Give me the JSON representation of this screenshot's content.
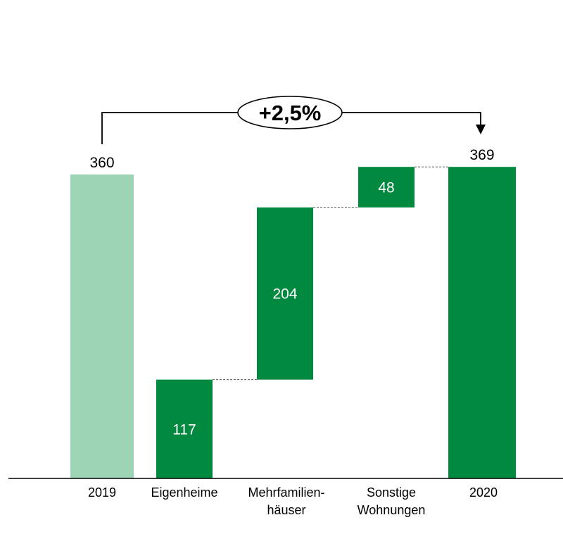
{
  "chart_data": {
    "type": "bar",
    "variant": "waterfall",
    "categories": [
      [
        "2019"
      ],
      [
        "Eigenheime"
      ],
      [
        "Mehrfamilien-",
        "häuser"
      ],
      [
        "Sonstige",
        "Wohnungen"
      ],
      [
        "2020"
      ]
    ],
    "values": [
      360,
      117,
      204,
      48,
      369
    ],
    "kinds": [
      "reference",
      "increase",
      "increase",
      "increase",
      "total"
    ],
    "annotation": {
      "text": "+2,5%",
      "from_index": 0,
      "to_index": 4
    },
    "grid": false,
    "colors": {
      "reference": "#9dd4b6",
      "increase": "#00893f",
      "total": "#00893f",
      "value_label_inside": "#ffffff",
      "value_label_outside": "#000000",
      "connector": "#555555",
      "axis": "#000000"
    }
  }
}
